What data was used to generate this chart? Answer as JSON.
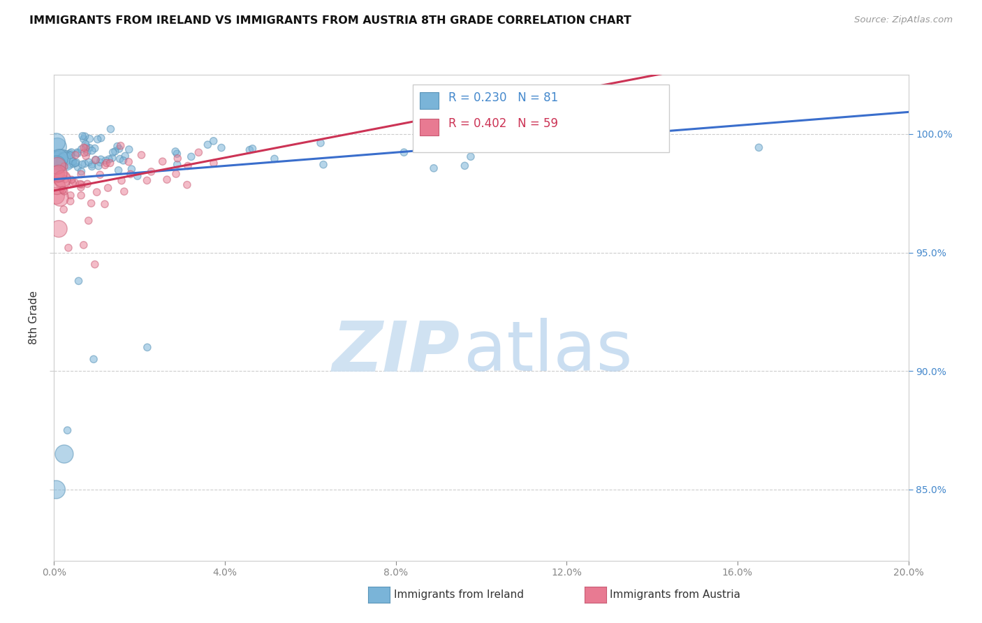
{
  "title": "IMMIGRANTS FROM IRELAND VS IMMIGRANTS FROM AUSTRIA 8TH GRADE CORRELATION CHART",
  "source_text": "Source: ZipAtlas.com",
  "ylabel_left": "8th Grade",
  "ireland_color": "#7ab4d8",
  "austria_color": "#e87a92",
  "ireland_edge_color": "#5a94b8",
  "austria_edge_color": "#c85a72",
  "ireland_line_color": "#3a6ecc",
  "austria_line_color": "#cc3355",
  "ireland_R": 0.23,
  "ireland_N": 81,
  "austria_R": 0.402,
  "austria_N": 59,
  "xmin": 0.0,
  "xmax": 20.0,
  "ymin": 82.0,
  "ymax": 102.5,
  "yticks": [
    85.0,
    90.0,
    95.0,
    100.0
  ],
  "ytick_labels": [
    "85.0%",
    "90.0%",
    "95.0%",
    "100.0%"
  ],
  "xticks": [
    0.0,
    4.0,
    8.0,
    12.0,
    16.0,
    20.0
  ],
  "xtick_labels": [
    "0.0%",
    "4.0%",
    "8.0%",
    "12.0%",
    "16.0%",
    "20.0%"
  ],
  "right_tick_color": "#4488cc",
  "bottom_legend_ireland": "Immigrants from Ireland",
  "bottom_legend_austria": "Immigrants from Austria",
  "legend_R_ireland": "R = 0.230",
  "legend_N_ireland": "N = 81",
  "legend_R_austria": "R = 0.402",
  "legend_N_austria": "N = 59",
  "watermark_zip": "ZIP",
  "watermark_atlas": "atlas",
  "watermark_color_zip": "#c8ddf0",
  "watermark_color_atlas": "#a8c8e8"
}
